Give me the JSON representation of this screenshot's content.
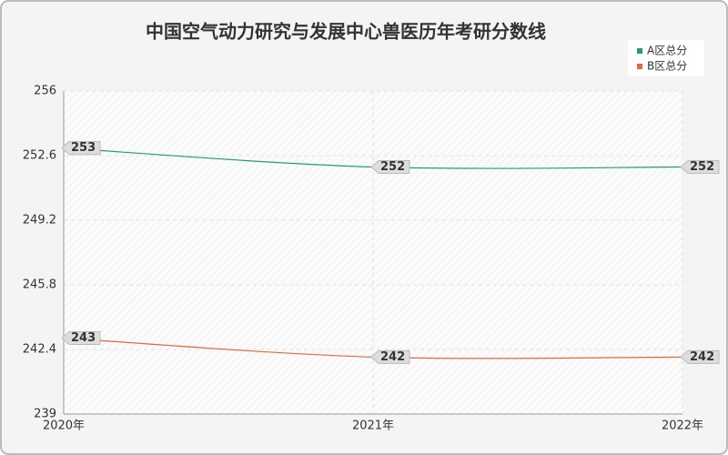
{
  "chart_data": {
    "type": "line",
    "title": "中国空气动力研究与发展中心兽医历年考研分数线",
    "categories": [
      "2020年",
      "2021年",
      "2022年"
    ],
    "series": [
      {
        "name": "A区总分",
        "color": "#1f9e76",
        "values": [
          253,
          252,
          252
        ]
      },
      {
        "name": "B区总分",
        "color": "#e06a3b",
        "values": [
          243,
          242,
          242
        ]
      }
    ],
    "ylim": [
      239,
      256
    ],
    "yticks": [
      239,
      242.4,
      245.8,
      249.2,
      252.6,
      256
    ],
    "grid": true,
    "legend": "top-right"
  }
}
